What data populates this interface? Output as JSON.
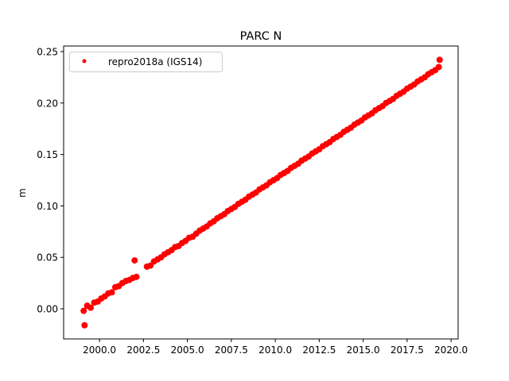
{
  "chart_data": {
    "type": "scatter",
    "title": "PARC N",
    "xlabel": "",
    "ylabel": "m",
    "xlim": [
      1997.96,
      2020.4
    ],
    "ylim": [
      -0.0293,
      0.2554
    ],
    "xticks": [
      "2000.0",
      "2002.5",
      "2005.0",
      "2007.5",
      "2010.0",
      "2012.5",
      "2015.0",
      "2017.5",
      "2020.0"
    ],
    "yticks": [
      "0.00",
      "0.05",
      "0.10",
      "0.15",
      "0.20",
      "0.25"
    ],
    "grid": false,
    "legend": {
      "placement": "upper-left",
      "entries": [
        "repro2018a (IGS14)"
      ]
    },
    "series": [
      {
        "name": "repro2018a (IGS14)",
        "color": "#ff0000",
        "marker": "dot",
        "x": [
          1999.1,
          1999.15,
          1999.3,
          1999.5,
          1999.7,
          1999.9,
          2000.1,
          2000.3,
          2000.5,
          2000.7,
          2000.9,
          2001.1,
          2001.3,
          2001.5,
          2001.7,
          2001.9,
          2002.0,
          2002.1,
          2002.7,
          2002.9,
          2003.1,
          2003.3,
          2003.5,
          2003.7,
          2003.9,
          2004.1,
          2004.3,
          2004.5,
          2004.7,
          2004.9,
          2005.1,
          2005.3,
          2005.5,
          2005.7,
          2005.9,
          2006.1,
          2006.3,
          2006.5,
          2006.7,
          2006.9,
          2007.1,
          2007.3,
          2007.5,
          2007.7,
          2007.9,
          2008.1,
          2008.3,
          2008.5,
          2008.7,
          2008.9,
          2009.1,
          2009.3,
          2009.5,
          2009.7,
          2009.9,
          2010.1,
          2010.3,
          2010.5,
          2010.7,
          2010.9,
          2011.1,
          2011.3,
          2011.5,
          2011.7,
          2011.9,
          2012.1,
          2012.3,
          2012.5,
          2012.7,
          2012.9,
          2013.1,
          2013.3,
          2013.5,
          2013.7,
          2013.9,
          2014.1,
          2014.3,
          2014.5,
          2014.7,
          2014.9,
          2015.1,
          2015.3,
          2015.5,
          2015.7,
          2015.9,
          2016.1,
          2016.3,
          2016.5,
          2016.7,
          2016.9,
          2017.1,
          2017.3,
          2017.5,
          2017.7,
          2017.9,
          2018.1,
          2018.3,
          2018.5,
          2018.7,
          2018.9,
          2019.1,
          2019.3,
          2019.35
        ],
        "y": [
          -0.002,
          -0.016,
          0.003,
          0.001,
          0.006,
          0.007,
          0.01,
          0.012,
          0.015,
          0.016,
          0.021,
          0.022,
          0.025,
          0.027,
          0.028,
          0.03,
          0.047,
          0.031,
          0.041,
          0.042,
          0.046,
          0.048,
          0.05,
          0.053,
          0.055,
          0.057,
          0.06,
          0.061,
          0.064,
          0.066,
          0.069,
          0.07,
          0.073,
          0.076,
          0.078,
          0.08,
          0.083,
          0.085,
          0.088,
          0.09,
          0.092,
          0.095,
          0.097,
          0.099,
          0.102,
          0.104,
          0.106,
          0.109,
          0.111,
          0.113,
          0.116,
          0.118,
          0.12,
          0.123,
          0.125,
          0.127,
          0.13,
          0.132,
          0.134,
          0.137,
          0.139,
          0.141,
          0.144,
          0.146,
          0.148,
          0.151,
          0.153,
          0.155,
          0.158,
          0.16,
          0.162,
          0.165,
          0.167,
          0.169,
          0.172,
          0.174,
          0.176,
          0.179,
          0.181,
          0.183,
          0.186,
          0.188,
          0.19,
          0.193,
          0.195,
          0.197,
          0.2,
          0.202,
          0.204,
          0.207,
          0.209,
          0.211,
          0.214,
          0.216,
          0.218,
          0.221,
          0.223,
          0.225,
          0.228,
          0.23,
          0.232,
          0.235,
          0.242
        ]
      }
    ]
  }
}
